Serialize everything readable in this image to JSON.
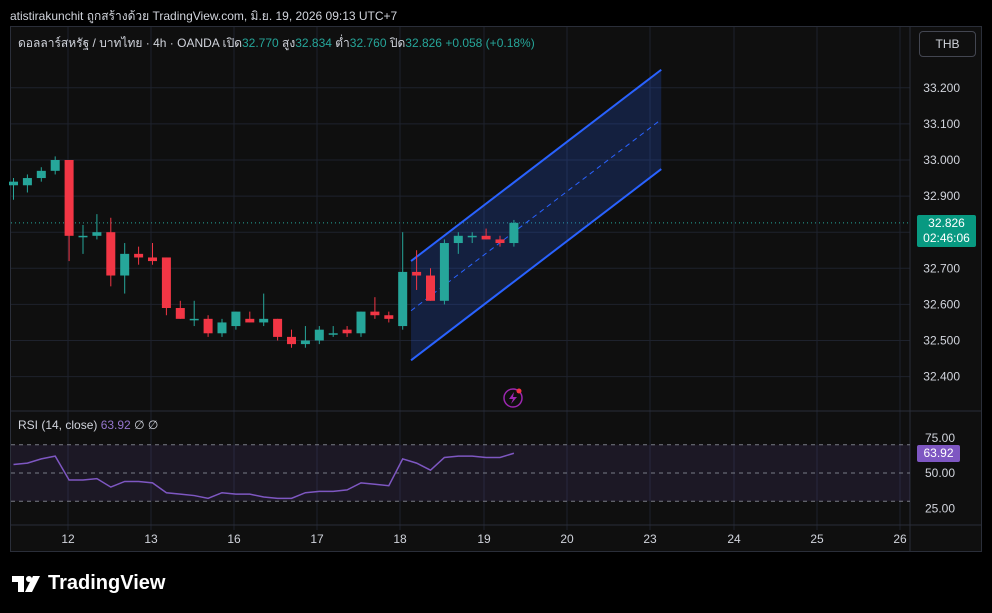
{
  "header": {
    "attribution": "atistirakunchit ถูกสร้างด้วย TradingView.com, มิ.ย. 19, 2026 09:13 UTC+7"
  },
  "legend": {
    "symbol": "ดอลลาร์สหรัฐ / บาทไทย · 4h · OANDA",
    "open_label": "เปิด",
    "open": "32.770",
    "high_label": "สูง",
    "high": "32.834",
    "low_label": "ต่ำ",
    "low": "32.760",
    "close_label": "ปิด",
    "close": "32.826",
    "change": "+0.058 (+0.18%)"
  },
  "currency_button": "THB",
  "price_tag": {
    "price": "32.826",
    "countdown": "02:46:06"
  },
  "rsi": {
    "label": "RSI (14, close)",
    "value": "63.92",
    "extra": "∅ ∅"
  },
  "brand": {
    "name": "TradingView"
  },
  "colors": {
    "up": "#26a69a",
    "down": "#f23645",
    "channel": "#2962ff",
    "rsi": "#7e57c2"
  },
  "chart_data": {
    "type": "candlestick",
    "timeframe": "4h",
    "price_axis": {
      "ticks": [
        "33.200",
        "33.100",
        "33.000",
        "32.900",
        "32.700",
        "32.600",
        "32.500",
        "32.400"
      ]
    },
    "rsi_axis": {
      "ticks": [
        "75.00",
        "50.00",
        "25.00"
      ],
      "bands": [
        70,
        50,
        30
      ]
    },
    "x_ticks": [
      {
        "label": "12",
        "day": 12
      },
      {
        "label": "13",
        "day": 13
      },
      {
        "label": "16",
        "day": 16
      },
      {
        "label": "17",
        "day": 17
      },
      {
        "label": "18",
        "day": 18
      },
      {
        "label": "19",
        "day": 19
      },
      {
        "label": "20",
        "day": 20
      },
      {
        "label": "23",
        "day": 23
      },
      {
        "label": "24",
        "day": 24
      },
      {
        "label": "25",
        "day": 25
      },
      {
        "label": "26",
        "day": 26
      }
    ],
    "candles": [
      {
        "i": 0,
        "o": 32.93,
        "h": 32.95,
        "l": 32.89,
        "c": 32.94
      },
      {
        "i": 1,
        "o": 32.93,
        "h": 32.96,
        "l": 32.91,
        "c": 32.95
      },
      {
        "i": 2,
        "o": 32.95,
        "h": 32.98,
        "l": 32.94,
        "c": 32.97
      },
      {
        "i": 3,
        "o": 32.97,
        "h": 33.01,
        "l": 32.96,
        "c": 33.0
      },
      {
        "i": 4,
        "o": 33.0,
        "h": 33.0,
        "l": 32.72,
        "c": 32.79
      },
      {
        "i": 5,
        "o": 32.79,
        "h": 32.82,
        "l": 32.74,
        "c": 32.79
      },
      {
        "i": 6,
        "o": 32.79,
        "h": 32.85,
        "l": 32.78,
        "c": 32.8
      },
      {
        "i": 7,
        "o": 32.8,
        "h": 32.84,
        "l": 32.65,
        "c": 32.68
      },
      {
        "i": 8,
        "o": 32.68,
        "h": 32.77,
        "l": 32.63,
        "c": 32.74
      },
      {
        "i": 9,
        "o": 32.74,
        "h": 32.76,
        "l": 32.71,
        "c": 32.73
      },
      {
        "i": 10,
        "o": 32.73,
        "h": 32.77,
        "l": 32.71,
        "c": 32.72
      },
      {
        "i": 11,
        "o": 32.73,
        "h": 32.73,
        "l": 32.57,
        "c": 32.59
      },
      {
        "i": 12,
        "o": 32.59,
        "h": 32.61,
        "l": 32.56,
        "c": 32.56
      },
      {
        "i": 13,
        "o": 32.56,
        "h": 32.61,
        "l": 32.54,
        "c": 32.56
      },
      {
        "i": 14,
        "o": 32.56,
        "h": 32.57,
        "l": 32.51,
        "c": 32.52
      },
      {
        "i": 15,
        "o": 32.52,
        "h": 32.56,
        "l": 32.51,
        "c": 32.55
      },
      {
        "i": 16,
        "o": 32.54,
        "h": 32.58,
        "l": 32.53,
        "c": 32.58
      },
      {
        "i": 17,
        "o": 32.56,
        "h": 32.58,
        "l": 32.55,
        "c": 32.55
      },
      {
        "i": 18,
        "o": 32.55,
        "h": 32.63,
        "l": 32.54,
        "c": 32.56
      },
      {
        "i": 19,
        "o": 32.56,
        "h": 32.56,
        "l": 32.5,
        "c": 32.51
      },
      {
        "i": 20,
        "o": 32.51,
        "h": 32.53,
        "l": 32.48,
        "c": 32.49
      },
      {
        "i": 21,
        "o": 32.49,
        "h": 32.54,
        "l": 32.48,
        "c": 32.5
      },
      {
        "i": 22,
        "o": 32.5,
        "h": 32.54,
        "l": 32.49,
        "c": 32.53
      },
      {
        "i": 23,
        "o": 32.52,
        "h": 32.54,
        "l": 32.51,
        "c": 32.52
      },
      {
        "i": 24,
        "o": 32.53,
        "h": 32.54,
        "l": 32.51,
        "c": 32.52
      },
      {
        "i": 25,
        "o": 32.52,
        "h": 32.58,
        "l": 32.51,
        "c": 32.58
      },
      {
        "i": 26,
        "o": 32.58,
        "h": 32.62,
        "l": 32.56,
        "c": 32.57
      },
      {
        "i": 27,
        "o": 32.57,
        "h": 32.58,
        "l": 32.55,
        "c": 32.56
      },
      {
        "i": 28,
        "o": 32.54,
        "h": 32.8,
        "l": 32.53,
        "c": 32.69
      },
      {
        "i": 29,
        "o": 32.69,
        "h": 32.75,
        "l": 32.64,
        "c": 32.68
      },
      {
        "i": 30,
        "o": 32.68,
        "h": 32.7,
        "l": 32.61,
        "c": 32.61
      },
      {
        "i": 31,
        "o": 32.61,
        "h": 32.78,
        "l": 32.6,
        "c": 32.77
      },
      {
        "i": 32,
        "o": 32.77,
        "h": 32.8,
        "l": 32.74,
        "c": 32.79
      },
      {
        "i": 33,
        "o": 32.79,
        "h": 32.8,
        "l": 32.77,
        "c": 32.79
      },
      {
        "i": 34,
        "o": 32.79,
        "h": 32.81,
        "l": 32.78,
        "c": 32.78
      },
      {
        "i": 35,
        "o": 32.78,
        "h": 32.79,
        "l": 32.76,
        "c": 32.77
      },
      {
        "i": 36,
        "o": 32.77,
        "h": 32.834,
        "l": 32.76,
        "c": 32.826
      }
    ],
    "channel": {
      "start_index": 28.6,
      "end_index": 46.6,
      "upper_start": 32.72,
      "upper_end": 33.25,
      "lower_start": 32.445,
      "lower_end": 32.975
    },
    "rsi_values": [
      56,
      57,
      60,
      62,
      45,
      45,
      46,
      40,
      44,
      44,
      43,
      36,
      35,
      34,
      32,
      36,
      35,
      35,
      33,
      32,
      32,
      36,
      37,
      37,
      38,
      43,
      42,
      41,
      60,
      57,
      52,
      61,
      62,
      62,
      61,
      61,
      64
    ]
  }
}
